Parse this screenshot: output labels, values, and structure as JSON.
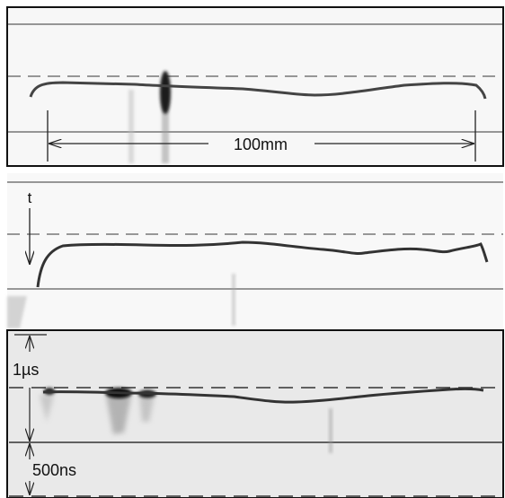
{
  "panel1": {
    "scale_label": "100mm"
  },
  "panel2": {
    "axis_label": "t"
  },
  "panel3": {
    "time_label_1": "1µs",
    "time_label_2": "500ns"
  },
  "colors": {
    "trace": "#3a3a3a",
    "line": "#555555",
    "panel3_bg": "#e8e8e8"
  }
}
